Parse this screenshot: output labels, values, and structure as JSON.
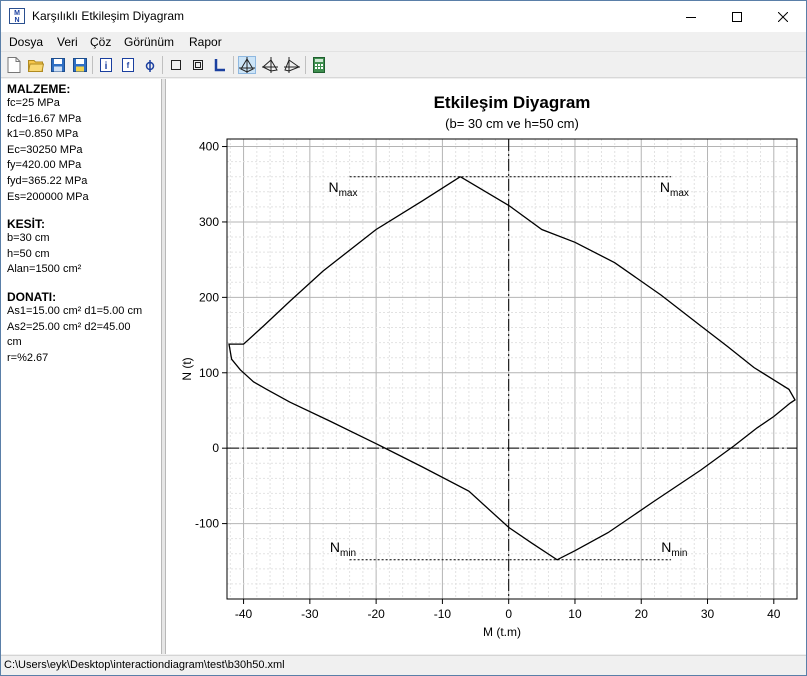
{
  "window": {
    "title": "Karşılıklı Etkileşim Diyagram",
    "icon_text_top": "M",
    "icon_text_bottom": "N"
  },
  "menu": [
    "Dosya",
    "Veri",
    "Çöz",
    "Görünüm",
    "Rapor"
  ],
  "toolbar_icons": [
    "new-file-icon",
    "open-folder-icon",
    "save-icon",
    "save-as-icon",
    "info-icon",
    "fc-icon",
    "phi-icon",
    "rectangle-section-icon",
    "box-section-icon",
    "l-section-icon",
    "diagram-n-icon",
    "diagram-left-icon",
    "diagram-right-icon",
    "calculator-icon"
  ],
  "material": {
    "heading": "MALZEME:",
    "lines": [
      "fc=25 MPa",
      "fcd=16.67 MPa",
      "k1=0.850 MPa",
      "Ec=30250 MPa",
      "fy=420.00 MPa",
      "fyd=365.22 MPa",
      "Es=200000 MPa"
    ]
  },
  "section": {
    "heading": "KESİT:",
    "lines": [
      "b=30 cm",
      "h=50 cm",
      "Alan=1500 cm²"
    ]
  },
  "rebar": {
    "heading": "DONATI:",
    "lines": [
      "As1=15.00 cm² d1=5.00 cm",
      "As2=25.00 cm² d2=45.00",
      "cm",
      "r=%2.67"
    ]
  },
  "status": {
    "path": "C:\\Users\\eyk\\Desktop\\interactiondiagram\\test\\b30h50.xml"
  },
  "chart_data": {
    "type": "line",
    "title": "Etkileşim Diyagram",
    "subtitle": "(b= 30 cm ve h=50 cm)",
    "xlabel": "M (t.m)",
    "ylabel": "N (t)",
    "xlim": [
      -42.5,
      43.5
    ],
    "ylim": [
      -200,
      410
    ],
    "xticks": [
      -40,
      -30,
      -20,
      -10,
      0,
      10,
      20,
      30,
      40
    ],
    "yticks": [
      -100,
      0,
      100,
      200,
      300,
      400
    ],
    "grid": true,
    "series": [
      {
        "points": [
          [
            -7.3,
            360
          ],
          [
            -13,
            328
          ],
          [
            -20,
            290
          ],
          [
            -28,
            235
          ],
          [
            -33,
            195
          ],
          [
            -37,
            162
          ],
          [
            -40,
            138
          ],
          [
            -42.2,
            138
          ],
          [
            -41.8,
            118
          ],
          [
            -40.5,
            104
          ],
          [
            -38.5,
            88
          ],
          [
            -36.5,
            78
          ],
          [
            -33,
            61
          ],
          [
            -27,
            36
          ],
          [
            -20,
            6
          ],
          [
            -13,
            -25
          ],
          [
            -6,
            -57
          ],
          [
            0,
            -105
          ],
          [
            3.5,
            -126
          ],
          [
            7.3,
            -148
          ],
          [
            10,
            -136
          ],
          [
            15,
            -112
          ],
          [
            22,
            -70
          ],
          [
            29,
            -29
          ],
          [
            34,
            3
          ],
          [
            37.5,
            27
          ],
          [
            40,
            42
          ],
          [
            42.5,
            60
          ],
          [
            43.2,
            64
          ],
          [
            42.3,
            78
          ],
          [
            37,
            107
          ],
          [
            33,
            135
          ],
          [
            29,
            162
          ],
          [
            23,
            203
          ],
          [
            16,
            246
          ],
          [
            10,
            273
          ],
          [
            5,
            290
          ],
          [
            0,
            322
          ],
          [
            -7.3,
            360
          ]
        ]
      }
    ],
    "annotations": [
      {
        "text": "N",
        "sub": "max",
        "x": -25,
        "y": 340
      },
      {
        "text": "N",
        "sub": "max",
        "x": 25,
        "y": 340
      },
      {
        "text": "N",
        "sub": "min",
        "x": -25,
        "y": -138
      },
      {
        "text": "N",
        "sub": "min",
        "x": 25,
        "y": -138
      }
    ],
    "reference_lines": [
      {
        "y": 360,
        "x_from": -24,
        "x_to": 24.5
      },
      {
        "y": -148,
        "x_from": -24,
        "x_to": 24.5
      }
    ]
  }
}
